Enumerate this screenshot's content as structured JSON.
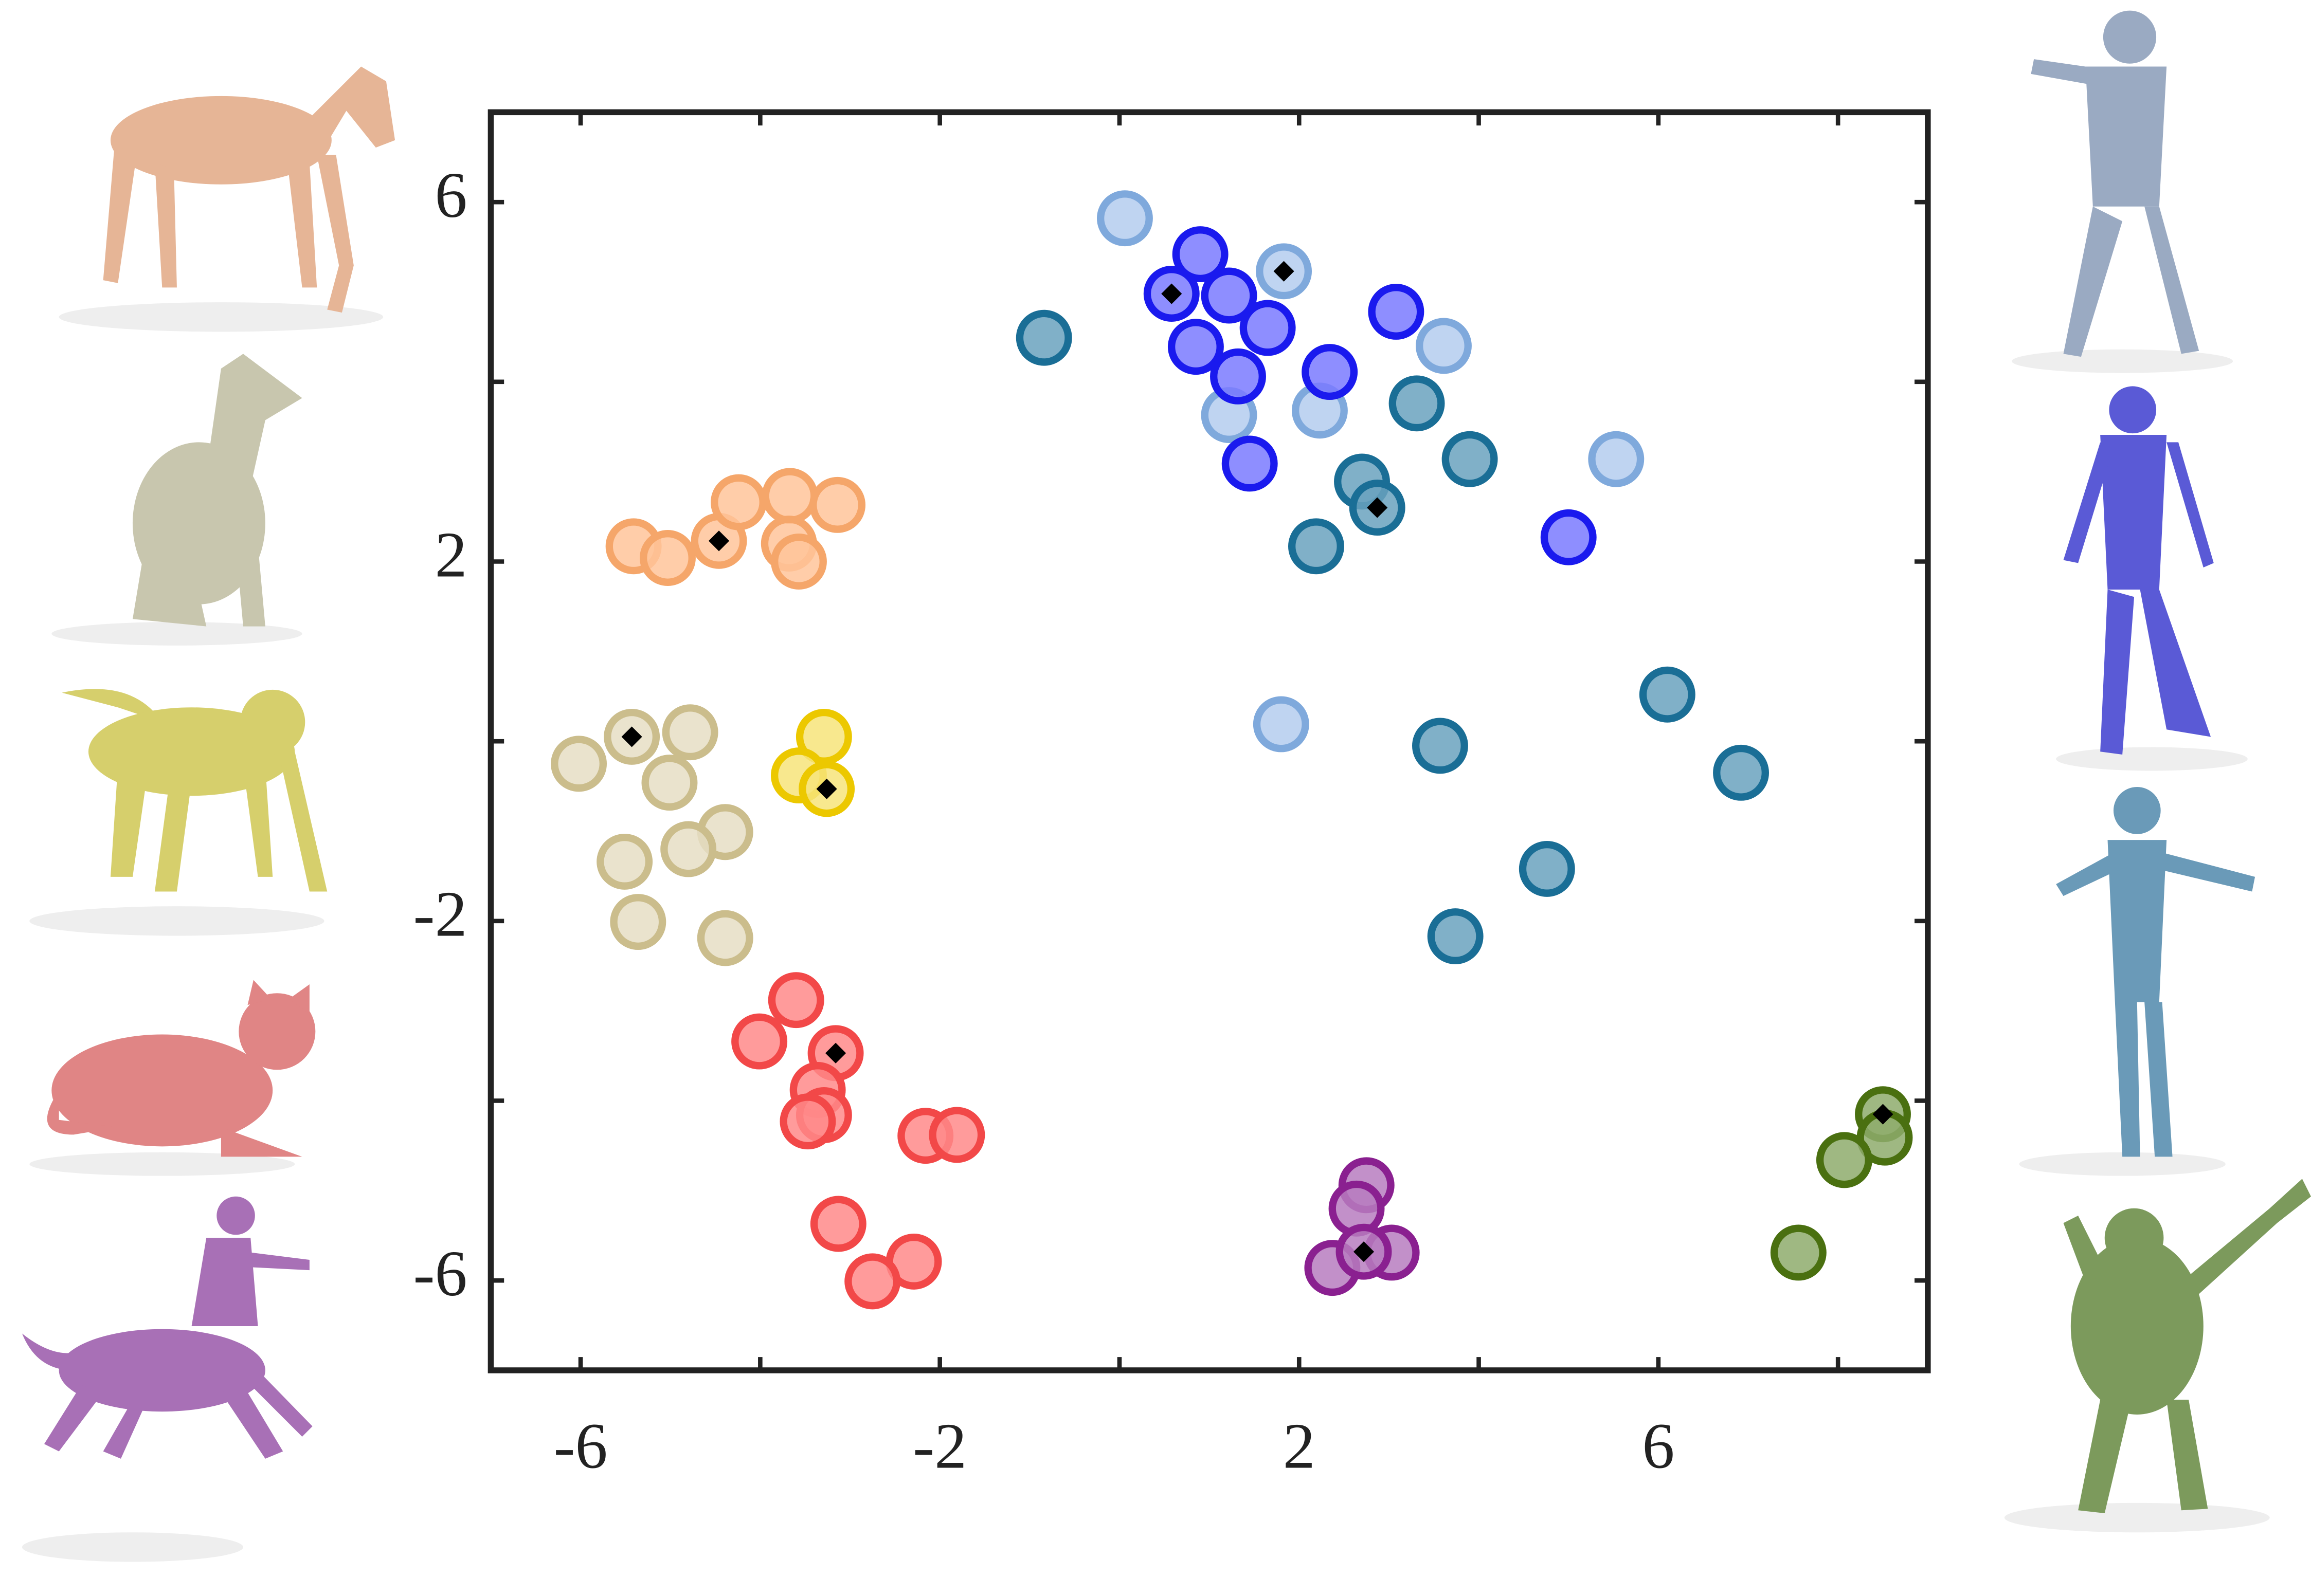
{
  "chart_data": {
    "type": "scatter",
    "xlim": [
      -7,
      9
    ],
    "ylim": [
      -7,
      7
    ],
    "xticks": [
      -6,
      -2,
      2,
      6
    ],
    "yticks": [
      -6,
      -2,
      2,
      6
    ],
    "xminor_ticks": [
      -4,
      0,
      4,
      8
    ],
    "yminor_ticks": [
      -4,
      0,
      4
    ],
    "series": [
      {
        "color": "#7fa9dc",
        "fill": "#b4cdee",
        "highlight": 1,
        "x": [
          0.06,
          1.83,
          1.22,
          2.23,
          3.61,
          5.53,
          1.8
        ],
        "values": [
          5.82,
          5.23,
          3.63,
          3.68,
          4.4,
          3.14,
          0.19
        ]
      },
      {
        "color": "#1a1aee",
        "fill": "#7a7aff",
        "highlight": 1,
        "x": [
          0.9,
          0.58,
          1.22,
          1.65,
          0.85,
          1.32,
          2.34,
          3.08,
          1.45,
          5.0
        ],
        "values": [
          5.42,
          4.98,
          4.96,
          4.6,
          4.39,
          4.06,
          4.11,
          4.78,
          3.09,
          2.27
        ]
      },
      {
        "color": "#1a6e96",
        "fill": "#6aa2be",
        "highlight": 4,
        "x": [
          -0.84,
          3.31,
          3.9,
          2.7,
          2.87,
          2.19,
          6.1,
          6.92,
          3.57,
          4.76,
          3.74
        ],
        "values": [
          4.49,
          3.76,
          3.14,
          2.89,
          2.6,
          2.17,
          0.52,
          -0.35,
          -0.05,
          -1.42,
          -2.17
        ]
      },
      {
        "color": "#f5a66a",
        "fill": "#ffc49a",
        "highlight": 2,
        "x": [
          -5.41,
          -5.03,
          -4.46,
          -4.24,
          -3.67,
          -3.14,
          -3.68,
          -3.57
        ],
        "values": [
          2.17,
          2.04,
          2.23,
          2.66,
          2.73,
          2.63,
          2.2,
          2.0
        ]
      },
      {
        "color": "#cbbd8c",
        "fill": "#e6dec4",
        "highlight": 0,
        "x": [
          -5.43,
          -4.78,
          -6.02,
          -5.01,
          -4.39,
          -4.8,
          -5.51,
          -5.36,
          -4.39
        ],
        "values": [
          0.05,
          0.1,
          -0.25,
          -0.46,
          -1.01,
          -1.2,
          -1.34,
          -2.01,
          -2.19
        ]
      },
      {
        "color": "#ecc800",
        "fill": "#f7e47a",
        "highlight": 2,
        "x": [
          -3.29,
          -3.57,
          -3.26
        ],
        "values": [
          0.05,
          -0.38,
          -0.53
        ]
      },
      {
        "color": "#f24848",
        "fill": "#ff8a8a",
        "highlight": 2,
        "x": [
          -3.6,
          -4.01,
          -3.16,
          -3.36,
          -3.29,
          -3.47,
          -2.16,
          -1.81,
          -3.13,
          -2.29,
          -2.75
        ],
        "values": [
          -2.88,
          -3.34,
          -3.47,
          -3.88,
          -4.16,
          -4.23,
          -4.39,
          -4.38,
          -5.37,
          -5.79,
          -6.01
        ]
      },
      {
        "color": "#8a2090",
        "fill": "#b77cc0",
        "highlight": 4,
        "x": [
          2.75,
          2.64,
          3.03,
          2.37,
          2.72
        ],
        "values": [
          -4.94,
          -5.2,
          -5.69,
          -5.86,
          -5.68
        ]
      },
      {
        "color": "#4a7010",
        "fill": "#8eac6c",
        "highlight": 0,
        "x": [
          8.5,
          8.52,
          8.07,
          7.56
        ],
        "values": [
          -4.15,
          -4.41,
          -4.66,
          -5.69
        ]
      }
    ]
  }
}
